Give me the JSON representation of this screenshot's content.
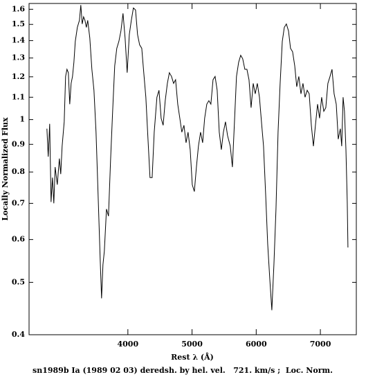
{
  "chart_data": {
    "type": "line",
    "title": "sn1989b Ia (1989 02 03) deredsh. by hel. vel.   721. km/s ;  Loc. Norm.",
    "xlabel": "Rest λ (Å)",
    "ylabel": "Locally Normalized Flux",
    "log_y": true,
    "color": "#000000",
    "xlim": [
      2460,
      7560
    ],
    "ylim": [
      0.4,
      1.64
    ],
    "xticks": [
      4000,
      5000,
      6000,
      7000
    ],
    "yticks": [
      0.4,
      0.5,
      0.6,
      0.7,
      0.8,
      0.9,
      1,
      1.1,
      1.2,
      1.3,
      1.4,
      1.5,
      1.6
    ],
    "x": [
      2738,
      2759,
      2781,
      2803,
      2824,
      2846,
      2867,
      2900,
      2932,
      2954,
      2975,
      3008,
      3029,
      3051,
      3072,
      3094,
      3116,
      3137,
      3159,
      3180,
      3213,
      3245,
      3266,
      3288,
      3310,
      3331,
      3353,
      3374,
      3407,
      3439,
      3471,
      3504,
      3536,
      3569,
      3590,
      3612,
      3633,
      3666,
      3698,
      3730,
      3763,
      3795,
      3827,
      3860,
      3892,
      3924,
      3957,
      3989,
      4022,
      4054,
      4086,
      4119,
      4151,
      4183,
      4216,
      4248,
      4280,
      4313,
      4345,
      4378,
      4410,
      4453,
      4485,
      4518,
      4550,
      4582,
      4615,
      4647,
      4680,
      4712,
      4744,
      4777,
      4809,
      4841,
      4874,
      4906,
      4938,
      4971,
      5003,
      5036,
      5068,
      5100,
      5133,
      5165,
      5197,
      5230,
      5262,
      5294,
      5327,
      5359,
      5392,
      5424,
      5456,
      5489,
      5521,
      5553,
      5596,
      5629,
      5661,
      5693,
      5726,
      5758,
      5790,
      5823,
      5855,
      5888,
      5920,
      5953,
      5985,
      6017,
      6050,
      6082,
      6114,
      6147,
      6179,
      6211,
      6244,
      6276,
      6308,
      6341,
      6373,
      6406,
      6438,
      6470,
      6503,
      6535,
      6567,
      6600,
      6632,
      6664,
      6697,
      6729,
      6761,
      6794,
      6826,
      6859,
      6891,
      6923,
      6956,
      6988,
      7020,
      7053,
      7085,
      7117,
      7150,
      7182,
      7214,
      7247,
      7279,
      7311,
      7333,
      7354,
      7376,
      7398,
      7419,
      7430
    ],
    "values": [
      0.962,
      0.854,
      0.982,
      0.704,
      0.781,
      0.7,
      0.817,
      0.758,
      0.847,
      0.793,
      0.893,
      0.991,
      1.202,
      1.239,
      1.221,
      1.068,
      1.167,
      1.202,
      1.276,
      1.395,
      1.481,
      1.526,
      1.629,
      1.503,
      1.549,
      1.526,
      1.481,
      1.526,
      1.416,
      1.239,
      1.133,
      0.948,
      0.725,
      0.547,
      0.467,
      0.539,
      0.571,
      0.683,
      0.663,
      0.841,
      1.036,
      1.257,
      1.355,
      1.395,
      1.459,
      1.572,
      1.416,
      1.221,
      1.437,
      1.526,
      1.609,
      1.595,
      1.437,
      1.375,
      1.355,
      1.221,
      1.1,
      0.92,
      0.781,
      0.781,
      0.948,
      1.1,
      1.133,
      1.006,
      0.976,
      1.084,
      1.167,
      1.221,
      1.202,
      1.167,
      1.185,
      1.068,
      1.006,
      0.948,
      0.976,
      0.906,
      0.948,
      0.88,
      0.758,
      0.736,
      0.817,
      0.893,
      0.948,
      0.906,
      1.006,
      1.068,
      1.084,
      1.068,
      1.185,
      1.202,
      1.133,
      0.948,
      0.88,
      0.948,
      0.991,
      0.934,
      0.893,
      0.817,
      0.991,
      1.202,
      1.276,
      1.315,
      1.296,
      1.239,
      1.239,
      1.185,
      1.052,
      1.167,
      1.116,
      1.167,
      1.1,
      0.991,
      0.893,
      0.725,
      0.589,
      0.508,
      0.444,
      0.539,
      0.683,
      0.948,
      1.167,
      1.395,
      1.481,
      1.503,
      1.459,
      1.355,
      1.335,
      1.257,
      1.15,
      1.202,
      1.116,
      1.167,
      1.1,
      1.133,
      1.116,
      0.976,
      0.893,
      0.976,
      1.068,
      1.006,
      1.1,
      1.036,
      1.052,
      1.167,
      1.202,
      1.239,
      1.116,
      1.068,
      0.92,
      0.962,
      0.893,
      1.1,
      1.036,
      0.88,
      0.704,
      0.58
    ]
  }
}
